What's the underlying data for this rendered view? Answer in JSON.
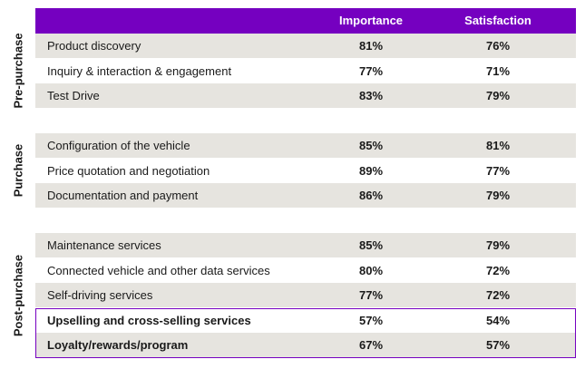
{
  "chart_data": {
    "type": "table",
    "columns": [
      "",
      "Importance",
      "Satisfaction"
    ],
    "groups": [
      {
        "name": "Pre-purchase",
        "rows": [
          {
            "label": "Product discovery",
            "importance": "81%",
            "satisfaction": "76%"
          },
          {
            "label": "Inquiry & interaction & engagement",
            "importance": "77%",
            "satisfaction": "71%"
          },
          {
            "label": "Test Drive",
            "importance": "83%",
            "satisfaction": "79%"
          }
        ]
      },
      {
        "name": "Purchase",
        "rows": [
          {
            "label": "Configuration of the vehicle",
            "importance": "85%",
            "satisfaction": "81%"
          },
          {
            "label": "Price quotation and negotiation",
            "importance": "89%",
            "satisfaction": "77%"
          },
          {
            "label": "Documentation and payment",
            "importance": "86%",
            "satisfaction": "79%"
          }
        ]
      },
      {
        "name": "Post-purchase",
        "rows": [
          {
            "label": "Maintenance services",
            "importance": "85%",
            "satisfaction": "79%"
          },
          {
            "label": "Connected vehicle and other data services",
            "importance": "80%",
            "satisfaction": "72%"
          },
          {
            "label": "Self-driving services",
            "importance": "77%",
            "satisfaction": "72%"
          },
          {
            "label": "Upselling and cross-selling services",
            "importance": "57%",
            "satisfaction": "54%",
            "highlighted": true
          },
          {
            "label": "Loyalty/rewards/program",
            "importance": "67%",
            "satisfaction": "57%",
            "highlighted": true
          }
        ]
      }
    ]
  },
  "colors": {
    "header": "#7500c0",
    "shade": "#e6e4df",
    "highlight_border": "#7500c0"
  }
}
